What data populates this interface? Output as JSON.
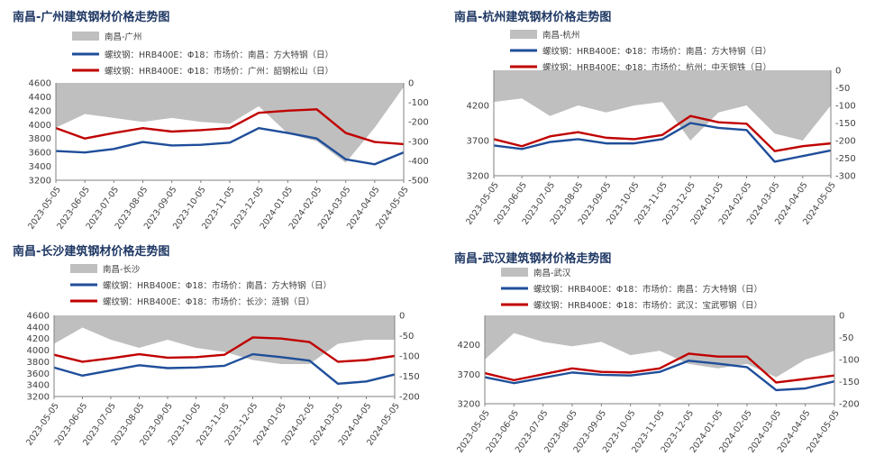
{
  "colors": {
    "area": "#bfbfbf",
    "blue": "#1f4e9a",
    "red": "#c00000",
    "title": "#1f3864",
    "text": "#404040"
  },
  "x_labels": [
    "2023-05-05",
    "2023-06-05",
    "2023-07-05",
    "2023-08-05",
    "2023-09-05",
    "2023-10-05",
    "2023-11-05",
    "2023-12-05",
    "2024-01-05",
    "2024-02-05",
    "2024-03-05",
    "2024-04-05",
    "2024-05-05"
  ],
  "chart_data": [
    {
      "type": "line",
      "title": "南昌-广州建筑钢材价格走势图",
      "x": [
        "2023-05-05",
        "2023-06-05",
        "2023-07-05",
        "2023-08-05",
        "2023-09-05",
        "2023-10-05",
        "2023-11-05",
        "2023-12-05",
        "2024-01-05",
        "2024-02-05",
        "2024-03-05",
        "2024-04-05",
        "2024-05-05"
      ],
      "ylim": [
        3200,
        4600
      ],
      "yticks": [
        "3200",
        "3400",
        "3600",
        "3800",
        "4000",
        "4200",
        "4400",
        "4600"
      ],
      "y2lim": [
        -500,
        0
      ],
      "y2ticks": [
        "0",
        "-100",
        "-200",
        "-300",
        "-400",
        "-500"
      ],
      "legend": [
        "南昌-广州",
        "螺纹钢：HRB400E：Φ18：市场价：南昌：方大特钢（日）",
        "螺纹钢：HRB400E：Φ18：市场价：广州：韶钢松山（日）"
      ],
      "series": [
        {
          "name": "南昌-广州",
          "kind": "area",
          "axis": "right",
          "values": [
            -230,
            -160,
            -180,
            -200,
            -180,
            -200,
            -210,
            -120,
            -260,
            -300,
            -410,
            -230,
            -20
          ]
        },
        {
          "name": "螺纹钢：HRB400E：Φ18：市场价：南昌：方大特钢（日）",
          "kind": "line",
          "axis": "left",
          "values": [
            3620,
            3600,
            3650,
            3750,
            3700,
            3710,
            3740,
            3950,
            3880,
            3800,
            3500,
            3430,
            3600
          ]
        },
        {
          "name": "螺纹钢：HRB400E：Φ18：市场价：广州：韶钢松山（日）",
          "kind": "line",
          "axis": "left",
          "values": [
            3950,
            3800,
            3880,
            3950,
            3900,
            3920,
            3950,
            4170,
            4200,
            4220,
            3880,
            3750,
            3720
          ]
        }
      ]
    },
    {
      "type": "line",
      "title": "南昌-杭州建筑钢材价格走势图",
      "x": [
        "2023-05-05",
        "2023-06-05",
        "2023-07-05",
        "2023-08-05",
        "2023-09-05",
        "2023-10-05",
        "2023-11-05",
        "2023-12-05",
        "2024-01-05",
        "2024-02-05",
        "2024-03-05",
        "2024-04-05",
        "2024-05-05"
      ],
      "ylim": [
        3200,
        4700
      ],
      "yticks": [
        "3200",
        "3700",
        "4200"
      ],
      "y2lim": [
        -300,
        0
      ],
      "y2ticks": [
        "0",
        "-50",
        "-100",
        "-150",
        "-200",
        "-250",
        "-300"
      ],
      "legend": [
        "南昌-杭州",
        "螺纹钢：HRB400E：Φ18：市场价：南昌：方大特钢（日）",
        "螺纹钢：HRB400E：Φ18：市场价：杭州：中天钢铁（日）"
      ],
      "series": [
        {
          "name": "南昌-杭州",
          "kind": "area",
          "axis": "right",
          "values": [
            -90,
            -80,
            -130,
            -100,
            -120,
            -100,
            -90,
            -200,
            -120,
            -100,
            -180,
            -200,
            -100
          ]
        },
        {
          "name": "螺纹钢：HRB400E：Φ18：市场价：南昌：方大特钢（日）",
          "kind": "line",
          "axis": "left",
          "values": [
            3630,
            3580,
            3680,
            3720,
            3660,
            3660,
            3720,
            3950,
            3880,
            3850,
            3400,
            3480,
            3560
          ]
        },
        {
          "name": "螺纹钢：HRB400E：Φ18：市场价：杭州：中天钢铁（日）",
          "kind": "line",
          "axis": "left",
          "values": [
            3720,
            3620,
            3760,
            3820,
            3740,
            3720,
            3780,
            4050,
            3960,
            3940,
            3550,
            3620,
            3660
          ]
        }
      ]
    },
    {
      "type": "line",
      "title": "南昌-长沙建筑钢材价格走势图",
      "x": [
        "2023-05-05",
        "2023-06-05",
        "2023-07-05",
        "2023-08-05",
        "2023-09-05",
        "2023-10-05",
        "2023-11-05",
        "2023-12-05",
        "2024-01-05",
        "2024-02-05",
        "2024-03-05",
        "2024-04-05",
        "2024-05-05"
      ],
      "ylim": [
        3200,
        4600
      ],
      "yticks": [
        "3200",
        "3400",
        "3600",
        "3800",
        "4000",
        "4200",
        "4400",
        "4600"
      ],
      "y2lim": [
        -200,
        0
      ],
      "y2ticks": [
        "0",
        "-50",
        "-100",
        "-150",
        "-200"
      ],
      "legend": [
        "南昌-长沙",
        "螺纹钢：HRB400E：Φ18：市场价：南昌：方大特钢（日）",
        "螺纹钢：HRB400E：Φ18：市场价：长沙：涟钢（日）"
      ],
      "series": [
        {
          "name": "南昌-长沙",
          "kind": "area",
          "axis": "right",
          "values": [
            -70,
            -30,
            -60,
            -80,
            -60,
            -80,
            -90,
            -110,
            -120,
            -120,
            -70,
            -60,
            -60
          ]
        },
        {
          "name": "螺纹钢：HRB400E：Φ18：市场价：南昌：方大特钢（日）",
          "kind": "line",
          "axis": "left",
          "values": [
            3700,
            3560,
            3650,
            3740,
            3690,
            3700,
            3730,
            3930,
            3880,
            3820,
            3420,
            3460,
            3580
          ]
        },
        {
          "name": "螺纹钢：HRB400E：Φ18：市场价：长沙：涟钢（日）",
          "kind": "line",
          "axis": "left",
          "values": [
            3920,
            3800,
            3860,
            3930,
            3870,
            3880,
            3920,
            4220,
            4200,
            4140,
            3800,
            3830,
            3900
          ]
        }
      ]
    },
    {
      "type": "line",
      "title": "南昌-武汉建筑钢材价格走势图",
      "x": [
        "2023-05-05",
        "2023-06-05",
        "2023-07-05",
        "2023-08-05",
        "2023-09-05",
        "2023-10-05",
        "2023-11-05",
        "2023-12-05",
        "2024-01-05",
        "2024-02-05",
        "2024-03-05",
        "2024-04-05",
        "2024-05-05"
      ],
      "ylim": [
        3200,
        4700
      ],
      "yticks": [
        "3200",
        "3700",
        "4200"
      ],
      "y2lim": [
        -200,
        0
      ],
      "y2ticks": [
        "0",
        "-50",
        "-100",
        "-150",
        "-200"
      ],
      "legend": [
        "南昌-武汉",
        "螺纹钢：HRB400E：Φ18：市场价：南昌：方大特钢（日）",
        "螺纹钢：HRB400E：Φ18：市场价：武汉：宝武鄂钢（日）"
      ],
      "series": [
        {
          "name": "南昌-武汉",
          "kind": "area",
          "axis": "right",
          "values": [
            -100,
            -40,
            -60,
            -70,
            -60,
            -90,
            -80,
            -110,
            -120,
            -110,
            -140,
            -100,
            -80
          ]
        },
        {
          "name": "螺纹钢：HRB400E：Φ18：市场价：南昌：方大特钢（日）",
          "kind": "line",
          "axis": "left",
          "values": [
            3650,
            3550,
            3640,
            3730,
            3690,
            3680,
            3740,
            3930,
            3880,
            3820,
            3430,
            3460,
            3580
          ]
        },
        {
          "name": "螺纹钢：HRB400E：Φ18：市场价：武汉：宝武鄂钢（日）",
          "kind": "line",
          "axis": "left",
          "values": [
            3720,
            3600,
            3700,
            3800,
            3740,
            3730,
            3800,
            4050,
            4000,
            4000,
            3560,
            3620,
            3680
          ]
        }
      ]
    }
  ]
}
